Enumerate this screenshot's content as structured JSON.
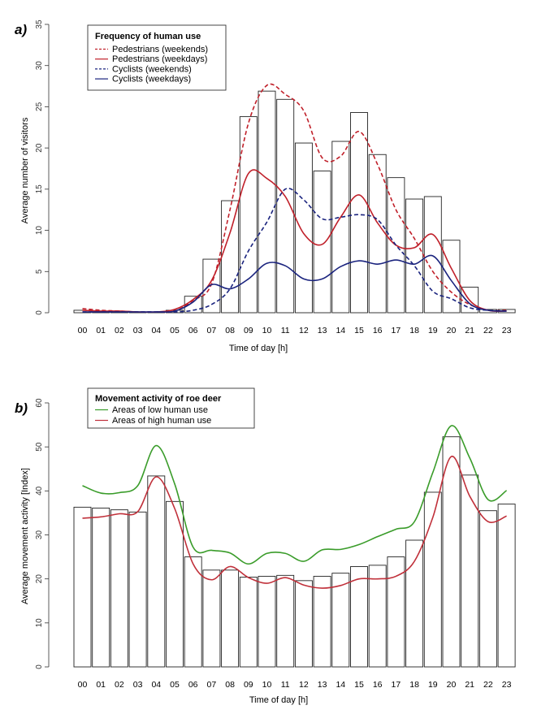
{
  "chart_data": [
    {
      "type": "bar",
      "panel": "a)",
      "xlabel": "Time of day [h]",
      "ylabel": "Average number of visitors",
      "ylim": [
        0,
        35
      ],
      "yticks": [
        0,
        5,
        10,
        15,
        20,
        25,
        30,
        35
      ],
      "categories": [
        "00",
        "01",
        "02",
        "03",
        "04",
        "05",
        "06",
        "07",
        "08",
        "09",
        "10",
        "11",
        "12",
        "13",
        "14",
        "15",
        "16",
        "17",
        "18",
        "19",
        "20",
        "21",
        "22",
        "23"
      ],
      "legend": {
        "title": "Frequency of human use",
        "placement": "top-left"
      },
      "bars": {
        "name": "",
        "values": [
          0.3,
          0.1,
          0.1,
          0.1,
          0.1,
          0.3,
          2.0,
          6.5,
          13.6,
          23.8,
          26.9,
          25.9,
          20.6,
          17.2,
          20.8,
          24.3,
          19.2,
          16.4,
          13.8,
          14.1,
          8.8,
          3.1,
          0.4,
          0.4
        ]
      },
      "series": [
        {
          "name": "Pedestrians (weekends)",
          "style": "dashed",
          "color": "#c0202a",
          "values": [
            0.5,
            0.3,
            0.2,
            0.1,
            0.1,
            0.2,
            1.5,
            3.5,
            12.5,
            23.0,
            27.6,
            26.5,
            24.5,
            18.8,
            19.0,
            22.0,
            18.0,
            12.5,
            9.0,
            5.0,
            2.5,
            1.0,
            0.3,
            0.3
          ]
        },
        {
          "name": "Pedestrians (weekdays)",
          "style": "solid",
          "color": "#c0202a",
          "values": [
            0.3,
            0.2,
            0.2,
            0.1,
            0.1,
            0.4,
            1.6,
            3.9,
            9.7,
            16.9,
            16.3,
            14.1,
            9.6,
            8.3,
            11.6,
            14.3,
            10.9,
            8.2,
            7.9,
            9.5,
            5.4,
            1.5,
            0.3,
            0.2
          ]
        },
        {
          "name": "Cyclists (weekends)",
          "style": "dashed",
          "color": "#1a237e",
          "values": [
            0.1,
            0.1,
            0.1,
            0.1,
            0.1,
            0.1,
            0.3,
            1.0,
            2.9,
            7.5,
            11.0,
            15.0,
            13.7,
            11.4,
            11.6,
            11.9,
            11.3,
            8.2,
            5.7,
            2.6,
            1.7,
            0.6,
            0.3,
            0.2
          ]
        },
        {
          "name": "Cyclists (weekdays)",
          "style": "solid",
          "color": "#1a237e",
          "values": [
            0.1,
            0.1,
            0.1,
            0.1,
            0.1,
            0.2,
            1.3,
            3.4,
            2.9,
            4.1,
            6.0,
            5.7,
            4.1,
            4.1,
            5.6,
            6.3,
            5.9,
            6.4,
            5.9,
            6.9,
            3.9,
            1.1,
            0.3,
            0.2
          ]
        }
      ]
    },
    {
      "type": "bar",
      "panel": "b)",
      "xlabel": "Time of day [h]",
      "ylabel": "Average movement activity [Index]",
      "ylim": [
        0,
        60
      ],
      "yticks": [
        0,
        10,
        20,
        30,
        40,
        50,
        60
      ],
      "categories": [
        "00",
        "01",
        "02",
        "03",
        "04",
        "05",
        "06",
        "07",
        "08",
        "09",
        "10",
        "11",
        "12",
        "13",
        "14",
        "15",
        "16",
        "17",
        "18",
        "19",
        "20",
        "21",
        "22",
        "23"
      ],
      "legend": {
        "title": "Movement activity of roe deer",
        "placement": "top-left"
      },
      "bars": {
        "name": "",
        "values": [
          36.3,
          36.1,
          35.7,
          35.2,
          43.4,
          37.6,
          25.0,
          22.0,
          22.0,
          20.4,
          20.6,
          20.8,
          19.6,
          20.6,
          21.3,
          22.8,
          23.1,
          25.0,
          28.8,
          39.7,
          52.3,
          43.6,
          35.5,
          37.0
        ]
      },
      "series": [
        {
          "name": "Areas of low human use",
          "style": "solid",
          "color": "#3a9c2a",
          "values": [
            41.2,
            39.5,
            39.6,
            41.2,
            50.3,
            41.6,
            27.2,
            26.5,
            25.9,
            23.4,
            25.8,
            25.8,
            24.0,
            26.6,
            26.7,
            27.8,
            29.6,
            31.3,
            33.0,
            44.2,
            54.8,
            47.5,
            38.0,
            40.1
          ]
        },
        {
          "name": "Areas of high human use",
          "style": "solid",
          "color": "#c0303a",
          "values": [
            33.8,
            34.1,
            34.8,
            35.3,
            43.2,
            36.0,
            23.4,
            19.8,
            22.8,
            20.3,
            19.0,
            20.3,
            18.6,
            17.9,
            18.5,
            20.0,
            20.0,
            20.6,
            24.0,
            34.0,
            47.8,
            38.8,
            33.0,
            34.3
          ]
        }
      ]
    }
  ]
}
